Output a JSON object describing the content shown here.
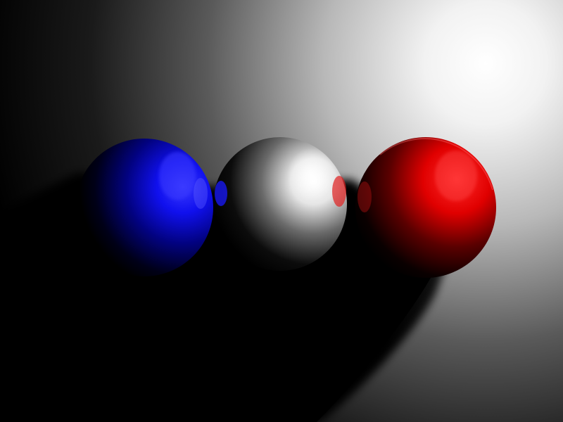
{
  "scene": {
    "background_color": "#000000",
    "light_color": "#ffffff",
    "floor_color": "#d8d8d8",
    "shadow_color": "#000000",
    "spheres": [
      {
        "name": "blue-sphere",
        "color": "#1a1aff",
        "dark": "#00001a"
      },
      {
        "name": "white-sphere",
        "color": "#f4f4f4",
        "dark": "#101010"
      },
      {
        "name": "red-sphere",
        "color": "#ff1a1a",
        "dark": "#1a0000"
      }
    ]
  }
}
